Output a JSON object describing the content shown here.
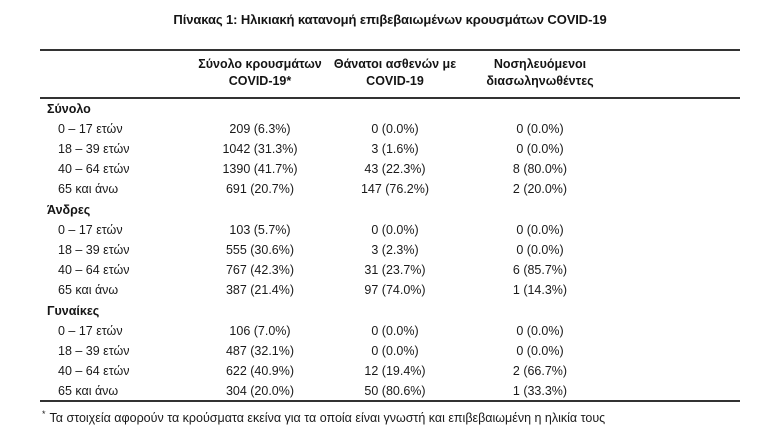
{
  "title": "Πίνακας 1: Ηλικιακή κατανομή επιβεβαιωμένων κρουσμάτων COVID-19",
  "table": {
    "columns": [
      {
        "line1": "Σύνολο κρουσμάτων",
        "line2": "COVID-19*"
      },
      {
        "line1": "Θάνατοι ασθενών με",
        "line2": "COVID-19"
      },
      {
        "line1": "Νοσηλευόμενοι",
        "line2": "διασωληνωθέντες"
      }
    ],
    "groups": [
      {
        "label": "Σύνολο",
        "rows": [
          {
            "age": "0 – 17 ετών",
            "cases": "209 (6.3%)",
            "deaths": "0 (0.0%)",
            "intubated": "0 (0.0%)"
          },
          {
            "age": "18 – 39 ετών",
            "cases": "1042 (31.3%)",
            "deaths": "3 (1.6%)",
            "intubated": "0 (0.0%)"
          },
          {
            "age": "40 – 64 ετών",
            "cases": "1390 (41.7%)",
            "deaths": "43 (22.3%)",
            "intubated": "8 (80.0%)"
          },
          {
            "age": "65 και άνω",
            "cases": "691 (20.7%)",
            "deaths": "147 (76.2%)",
            "intubated": "2 (20.0%)"
          }
        ]
      },
      {
        "label": "Άνδρες",
        "rows": [
          {
            "age": "0 – 17 ετών",
            "cases": "103 (5.7%)",
            "deaths": "0 (0.0%)",
            "intubated": "0 (0.0%)"
          },
          {
            "age": "18 – 39 ετών",
            "cases": "555 (30.6%)",
            "deaths": "3 (2.3%)",
            "intubated": "0 (0.0%)"
          },
          {
            "age": "40 – 64 ετών",
            "cases": "767 (42.3%)",
            "deaths": "31 (23.7%)",
            "intubated": "6 (85.7%)"
          },
          {
            "age": "65 και άνω",
            "cases": "387 (21.4%)",
            "deaths": "97 (74.0%)",
            "intubated": "1 (14.3%)"
          }
        ]
      },
      {
        "label": "Γυναίκες",
        "rows": [
          {
            "age": "0 – 17 ετών",
            "cases": "106 (7.0%)",
            "deaths": "0 (0.0%)",
            "intubated": "0 (0.0%)"
          },
          {
            "age": "18 – 39 ετών",
            "cases": "487 (32.1%)",
            "deaths": "0 (0.0%)",
            "intubated": "0 (0.0%)"
          },
          {
            "age": "40 – 64 ετών",
            "cases": "622 (40.9%)",
            "deaths": "12 (19.4%)",
            "intubated": "2 (66.7%)"
          },
          {
            "age": "65 και άνω",
            "cases": "304 (20.0%)",
            "deaths": "50 (80.6%)",
            "intubated": "1 (33.3%)"
          }
        ]
      }
    ]
  },
  "footnote": {
    "marker": "*",
    "text": "Τα στοιχεία αφορούν τα κρούσματα εκείνα για τα οποία είναι γνωστή και επιβεβαιωμένη η ηλικία τους"
  }
}
